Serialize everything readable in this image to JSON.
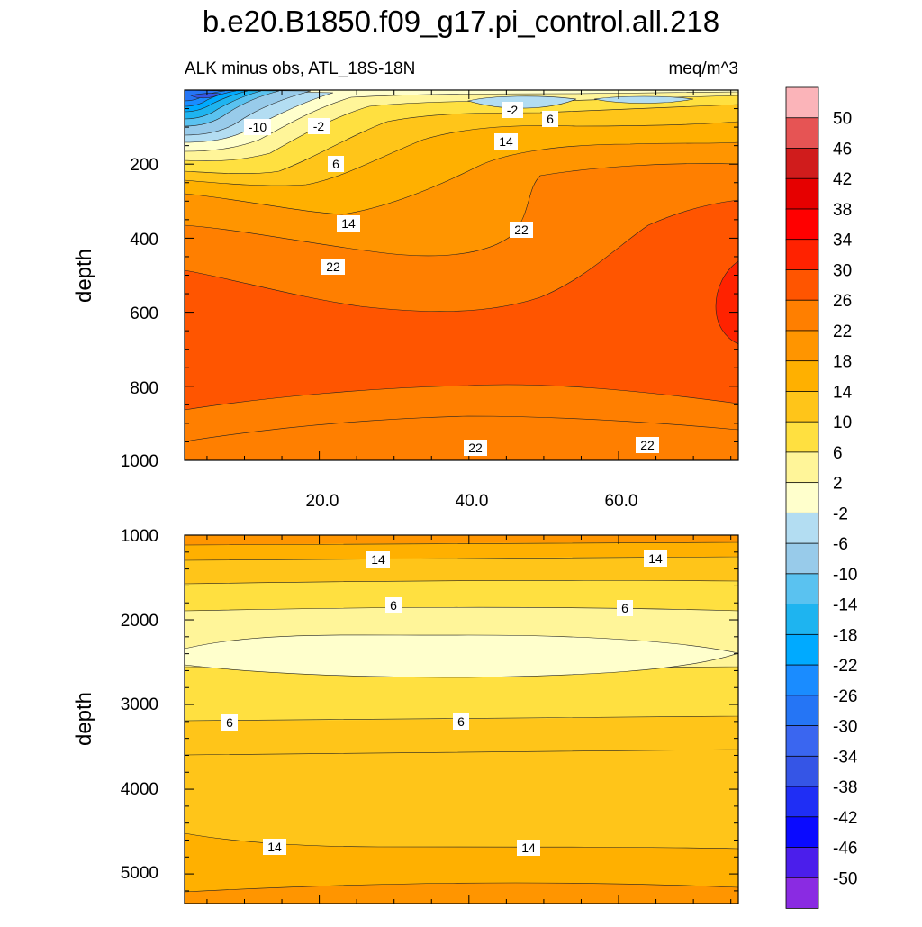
{
  "chart_data": {
    "type": "contour",
    "title": "b.e20.B1850.f09_g17.pi_control.all.218",
    "variable_label": "ALK minus obs, ATL_18S-18N",
    "units": "meq/m^3",
    "x_range": [
      2,
      76
    ],
    "x_ticks": [
      "20.0",
      "40.0",
      "60.0"
    ],
    "colorbar": {
      "levels": [
        "50",
        "46",
        "42",
        "38",
        "34",
        "30",
        "26",
        "22",
        "18",
        "14",
        "10",
        "6",
        "2",
        "-2",
        "-6",
        "-10",
        "-14",
        "-18",
        "-22",
        "-26",
        "-30",
        "-34",
        "-38",
        "-42",
        "-46",
        "-50"
      ],
      "colors": [
        "#fbb4b9",
        "#e65454",
        "#d01c1c",
        "#e60000",
        "#ff0000",
        "#ff2200",
        "#ff5500",
        "#ff7f00",
        "#ff9500",
        "#ffb000",
        "#ffc519",
        "#ffe040",
        "#fff599",
        "#ffffcc",
        "#b3ddf2",
        "#98cbea",
        "#5ac2f0",
        "#1eb4f0",
        "#00aaff",
        "#1a8cff",
        "#2575f5",
        "#3a66f0",
        "#3555e6",
        "#1f2ef5",
        "#0a0aff",
        "#4b1eeb",
        "#8a2be2"
      ]
    },
    "panels": [
      {
        "name": "upper",
        "ylabel": "depth",
        "ylim": [
          1000,
          0
        ],
        "y_ticks": [
          "200",
          "400",
          "600",
          "800",
          "1000"
        ],
        "contour_labels": [
          "-10",
          "-2",
          "-2",
          "6",
          "6",
          "14",
          "14",
          "22",
          "22",
          "22",
          "22"
        ]
      },
      {
        "name": "lower",
        "ylabel": "depth",
        "ylim": [
          5350,
          1000
        ],
        "y_ticks": [
          "1000",
          "2000",
          "3000",
          "4000",
          "5000"
        ],
        "contour_labels": [
          "14",
          "14",
          "6",
          "6",
          "6",
          "6",
          "14",
          "14"
        ]
      }
    ]
  }
}
